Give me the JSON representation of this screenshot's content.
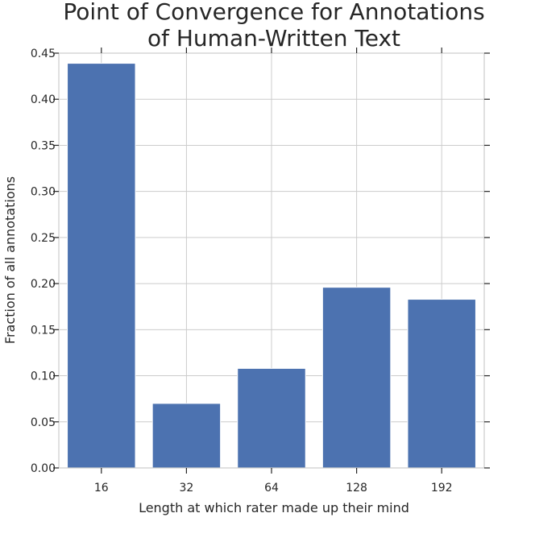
{
  "chart_data": {
    "type": "bar",
    "title_lines": [
      "Point of Convergence for Annotations",
      "of Human-Written Text"
    ],
    "xlabel": "Length at which rater made up their mind",
    "ylabel": "Fraction of all annotations",
    "categories": [
      "16",
      "32",
      "64",
      "128",
      "192"
    ],
    "values": [
      0.439,
      0.07,
      0.108,
      0.196,
      0.183
    ],
    "ylim": [
      0,
      0.45
    ],
    "yticks": [
      "0.00",
      "0.05",
      "0.10",
      "0.15",
      "0.20",
      "0.25",
      "0.30",
      "0.35",
      "0.40",
      "0.45"
    ],
    "grid": true,
    "bar_color": "#4c72b0",
    "grid_color": "#cccccc",
    "tick_color": "#262626"
  }
}
